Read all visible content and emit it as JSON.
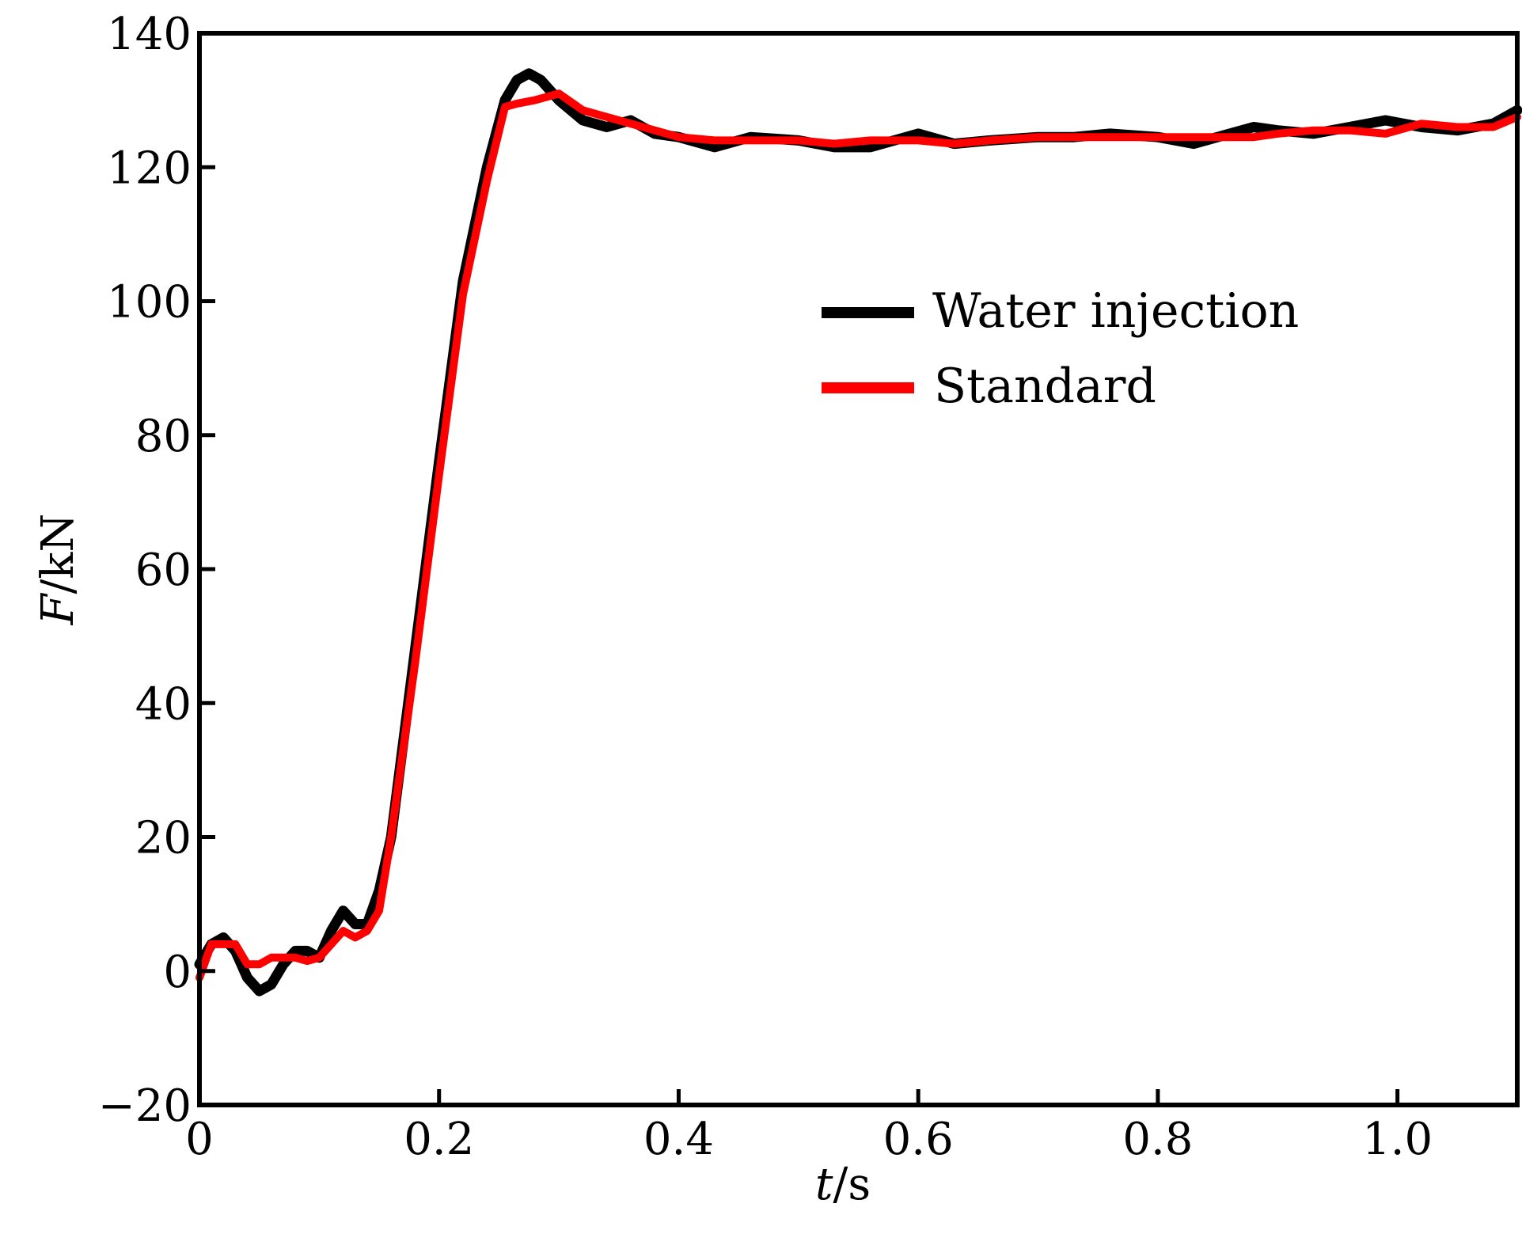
{
  "chart_data": {
    "type": "line",
    "xlabel": {
      "italic": "t",
      "unit": "/s"
    },
    "ylabel": {
      "italic": "F",
      "unit": "/kN"
    },
    "xlim": [
      0,
      1.1
    ],
    "ylim": [
      -20,
      140
    ],
    "x_ticks": [
      0,
      0.2,
      0.4,
      0.6,
      0.8,
      1.0
    ],
    "x_tick_labels": [
      "0",
      "0.2",
      "0.4",
      "0.6",
      "0.8",
      "1.0"
    ],
    "y_ticks": [
      -20,
      0,
      20,
      40,
      60,
      80,
      100,
      120,
      140
    ],
    "y_tick_labels": [
      "−20",
      "0",
      "20",
      "40",
      "60",
      "80",
      "100",
      "120",
      "140"
    ],
    "grid": false,
    "legend_position": "center-right",
    "series": [
      {
        "name": "Water injection",
        "color": "#000000",
        "x": [
          0,
          0.01,
          0.02,
          0.03,
          0.04,
          0.05,
          0.06,
          0.07,
          0.08,
          0.09,
          0.1,
          0.11,
          0.12,
          0.13,
          0.14,
          0.15,
          0.16,
          0.18,
          0.2,
          0.22,
          0.24,
          0.255,
          0.265,
          0.275,
          0.285,
          0.3,
          0.32,
          0.34,
          0.36,
          0.38,
          0.4,
          0.43,
          0.46,
          0.5,
          0.53,
          0.56,
          0.58,
          0.6,
          0.63,
          0.66,
          0.7,
          0.73,
          0.76,
          0.8,
          0.83,
          0.86,
          0.88,
          0.9,
          0.93,
          0.96,
          0.99,
          1.02,
          1.05,
          1.08,
          1.1
        ],
        "values": [
          1,
          4,
          5,
          3,
          -1,
          -3,
          -2,
          1,
          3,
          3,
          2,
          6,
          9,
          7,
          7,
          12,
          20,
          48,
          76,
          103,
          120,
          130,
          133,
          134,
          133,
          130,
          127,
          126,
          127,
          125,
          124.5,
          123,
          124.5,
          124,
          123,
          123,
          124,
          125,
          123.5,
          124,
          124.5,
          124.5,
          125,
          124.5,
          123.5,
          125,
          126,
          125.5,
          125,
          126,
          127,
          126,
          125.5,
          126.5,
          128.5
        ]
      },
      {
        "name": "Standard",
        "color": "#ff0000",
        "x": [
          0,
          0.01,
          0.02,
          0.03,
          0.04,
          0.05,
          0.06,
          0.07,
          0.08,
          0.09,
          0.1,
          0.11,
          0.12,
          0.13,
          0.14,
          0.15,
          0.16,
          0.18,
          0.2,
          0.22,
          0.24,
          0.255,
          0.265,
          0.28,
          0.3,
          0.32,
          0.34,
          0.36,
          0.38,
          0.4,
          0.43,
          0.46,
          0.5,
          0.53,
          0.56,
          0.6,
          0.63,
          0.66,
          0.7,
          0.73,
          0.76,
          0.8,
          0.83,
          0.86,
          0.88,
          0.9,
          0.93,
          0.96,
          0.99,
          1.02,
          1.05,
          1.08,
          1.1
        ],
        "values": [
          -1,
          4,
          4,
          4,
          1,
          1,
          2,
          2,
          2,
          1.5,
          2,
          4,
          6,
          5,
          6,
          9,
          20,
          46,
          74,
          101,
          118,
          129,
          129.5,
          130,
          131,
          128.5,
          127.5,
          126.5,
          125.5,
          124.5,
          124,
          124,
          124,
          123.5,
          124,
          124,
          123.5,
          124,
          124.5,
          124.5,
          124.5,
          124.5,
          124.5,
          124.5,
          124.5,
          125,
          125.5,
          125.5,
          125,
          126.5,
          126,
          126,
          127.5
        ]
      }
    ]
  }
}
